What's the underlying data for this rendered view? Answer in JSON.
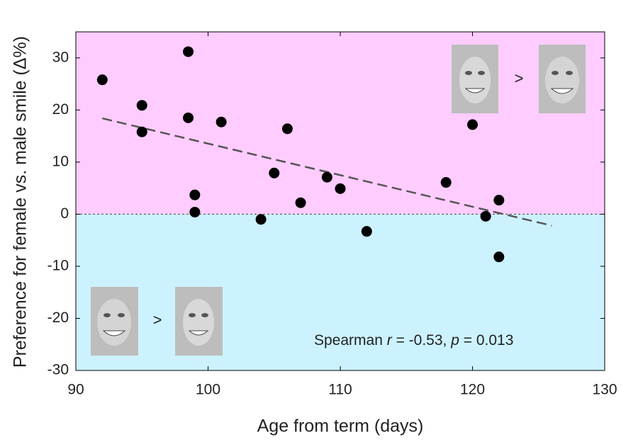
{
  "chart_data": {
    "type": "scatter",
    "xlabel": "Age from term (days)",
    "ylabel": "Preference for female vs. male smile (Δ%)",
    "x": [
      92,
      95,
      95,
      98.5,
      98.5,
      101,
      99,
      99,
      104,
      105,
      106,
      107,
      109,
      110,
      112,
      118,
      120,
      121,
      122,
      122
    ],
    "values": [
      25.8,
      20.9,
      15.8,
      31.2,
      18.5,
      17.7,
      3.7,
      0.4,
      -1.0,
      7.9,
      16.4,
      2.2,
      7.1,
      4.9,
      -3.3,
      6.1,
      17.2,
      -0.4,
      2.7,
      -8.2
    ],
    "color": "#000000",
    "xlim": [
      90,
      130
    ],
    "xticks": [
      90,
      100,
      110,
      120,
      130
    ],
    "ylim": [
      -30,
      35
    ],
    "yticks": [
      -30,
      -20,
      -10,
      0,
      10,
      20,
      30
    ],
    "reference_line": 0,
    "upper_color": "#ffccff",
    "lower_color": "#ccf2ff",
    "trend": {
      "x": [
        92,
        126
      ],
      "y": [
        18.4,
        -2.2
      ],
      "color": "#555555"
    },
    "annotation": [
      "Spearman ",
      "r",
      " = -0.53, ",
      "p",
      " = 0.013"
    ],
    "face_separators": [
      ">",
      ">"
    ]
  }
}
